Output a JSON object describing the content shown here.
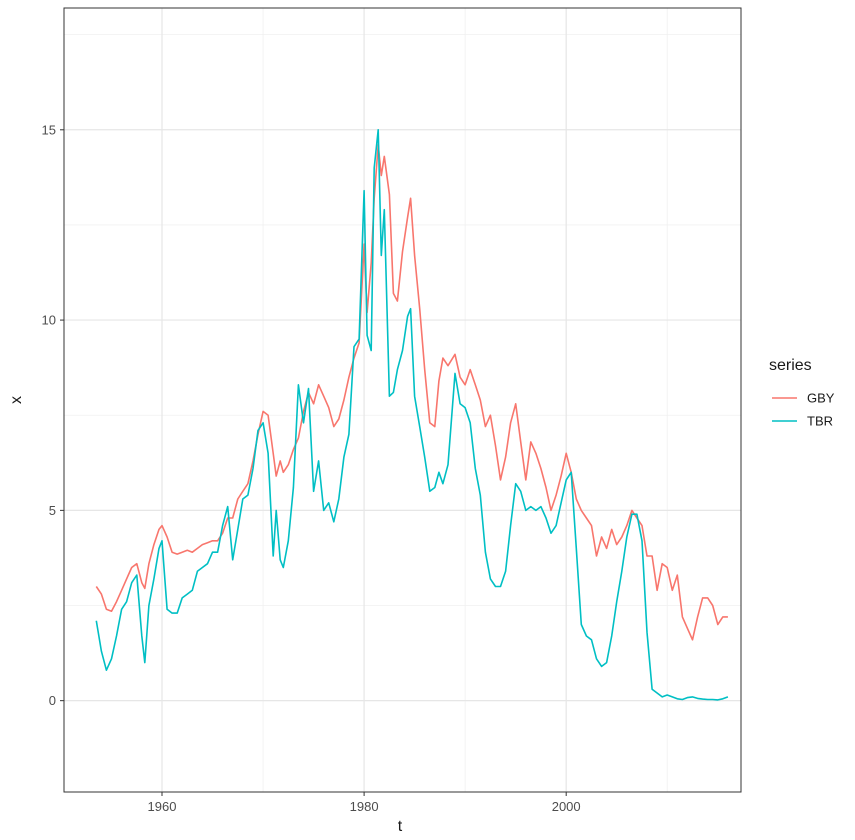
{
  "chart_data": {
    "type": "line",
    "xlabel": "t",
    "ylabel": "x",
    "xlim": [
      1950.3,
      2017.3
    ],
    "ylim": [
      -2.4,
      18.2
    ],
    "x_ticks": [
      1960,
      1980,
      2000
    ],
    "x_tick_labels": [
      "1960",
      "1980",
      "2000"
    ],
    "y_ticks": [
      0,
      5,
      10,
      15
    ],
    "y_tick_labels": [
      "0",
      "5",
      "10",
      "15"
    ],
    "grid": true,
    "legend": {
      "title": "series",
      "position": "right"
    },
    "series": [
      {
        "name": "GBY",
        "color": "#F8766D",
        "points": [
          [
            1953.5,
            3.0
          ],
          [
            1954.0,
            2.8
          ],
          [
            1954.5,
            2.4
          ],
          [
            1955.0,
            2.35
          ],
          [
            1955.5,
            2.6
          ],
          [
            1956.0,
            2.9
          ],
          [
            1956.5,
            3.2
          ],
          [
            1957.0,
            3.5
          ],
          [
            1957.5,
            3.6
          ],
          [
            1958.0,
            3.1
          ],
          [
            1958.3,
            2.95
          ],
          [
            1958.7,
            3.6
          ],
          [
            1959.2,
            4.1
          ],
          [
            1959.7,
            4.5
          ],
          [
            1960.0,
            4.6
          ],
          [
            1960.5,
            4.3
          ],
          [
            1961.0,
            3.9
          ],
          [
            1961.5,
            3.85
          ],
          [
            1962.0,
            3.9
          ],
          [
            1962.5,
            3.95
          ],
          [
            1963.0,
            3.9
          ],
          [
            1963.5,
            4.0
          ],
          [
            1964.0,
            4.1
          ],
          [
            1964.5,
            4.15
          ],
          [
            1965.0,
            4.2
          ],
          [
            1965.5,
            4.2
          ],
          [
            1966.0,
            4.4
          ],
          [
            1966.5,
            4.8
          ],
          [
            1967.0,
            4.8
          ],
          [
            1967.5,
            5.3
          ],
          [
            1968.0,
            5.5
          ],
          [
            1968.5,
            5.7
          ],
          [
            1969.0,
            6.3
          ],
          [
            1969.5,
            7.0
          ],
          [
            1970.0,
            7.6
          ],
          [
            1970.5,
            7.5
          ],
          [
            1971.0,
            6.5
          ],
          [
            1971.3,
            5.9
          ],
          [
            1971.7,
            6.3
          ],
          [
            1972.0,
            6.0
          ],
          [
            1972.5,
            6.2
          ],
          [
            1973.0,
            6.6
          ],
          [
            1973.5,
            6.9
          ],
          [
            1974.0,
            7.6
          ],
          [
            1974.5,
            8.1
          ],
          [
            1975.0,
            7.8
          ],
          [
            1975.5,
            8.3
          ],
          [
            1976.0,
            8.0
          ],
          [
            1976.5,
            7.7
          ],
          [
            1977.0,
            7.2
          ],
          [
            1977.5,
            7.4
          ],
          [
            1978.0,
            7.9
          ],
          [
            1978.5,
            8.5
          ],
          [
            1979.0,
            9.0
          ],
          [
            1979.5,
            9.4
          ],
          [
            1980.0,
            12.0
          ],
          [
            1980.3,
            10.2
          ],
          [
            1980.7,
            11.5
          ],
          [
            1981.0,
            13.2
          ],
          [
            1981.4,
            14.6
          ],
          [
            1981.7,
            13.8
          ],
          [
            1982.0,
            14.3
          ],
          [
            1982.5,
            13.3
          ],
          [
            1982.9,
            10.7
          ],
          [
            1983.3,
            10.5
          ],
          [
            1983.8,
            11.8
          ],
          [
            1984.3,
            12.7
          ],
          [
            1984.6,
            13.2
          ],
          [
            1985.0,
            11.7
          ],
          [
            1985.5,
            10.3
          ],
          [
            1986.0,
            8.7
          ],
          [
            1986.5,
            7.3
          ],
          [
            1987.0,
            7.2
          ],
          [
            1987.4,
            8.4
          ],
          [
            1987.8,
            9.0
          ],
          [
            1988.3,
            8.8
          ],
          [
            1989.0,
            9.1
          ],
          [
            1989.5,
            8.5
          ],
          [
            1990.0,
            8.3
          ],
          [
            1990.5,
            8.7
          ],
          [
            1991.0,
            8.3
          ],
          [
            1991.5,
            7.9
          ],
          [
            1992.0,
            7.2
          ],
          [
            1992.5,
            7.5
          ],
          [
            1993.0,
            6.7
          ],
          [
            1993.5,
            5.8
          ],
          [
            1994.0,
            6.4
          ],
          [
            1994.5,
            7.3
          ],
          [
            1995.0,
            7.8
          ],
          [
            1995.5,
            6.8
          ],
          [
            1996.0,
            5.8
          ],
          [
            1996.5,
            6.8
          ],
          [
            1997.0,
            6.5
          ],
          [
            1997.5,
            6.1
          ],
          [
            1998.0,
            5.6
          ],
          [
            1998.5,
            5.0
          ],
          [
            1999.0,
            5.4
          ],
          [
            1999.5,
            5.9
          ],
          [
            2000.0,
            6.5
          ],
          [
            2000.5,
            6.0
          ],
          [
            2001.0,
            5.3
          ],
          [
            2001.5,
            5.0
          ],
          [
            2002.0,
            4.8
          ],
          [
            2002.5,
            4.6
          ],
          [
            2003.0,
            3.8
          ],
          [
            2003.5,
            4.3
          ],
          [
            2004.0,
            4.0
          ],
          [
            2004.5,
            4.5
          ],
          [
            2005.0,
            4.1
          ],
          [
            2005.5,
            4.3
          ],
          [
            2006.0,
            4.6
          ],
          [
            2006.5,
            5.0
          ],
          [
            2007.0,
            4.8
          ],
          [
            2007.5,
            4.6
          ],
          [
            2008.0,
            3.8
          ],
          [
            2008.5,
            3.8
          ],
          [
            2009.0,
            2.9
          ],
          [
            2009.5,
            3.6
          ],
          [
            2010.0,
            3.5
          ],
          [
            2010.5,
            2.9
          ],
          [
            2011.0,
            3.3
          ],
          [
            2011.5,
            2.2
          ],
          [
            2012.0,
            1.9
          ],
          [
            2012.5,
            1.6
          ],
          [
            2013.0,
            2.2
          ],
          [
            2013.5,
            2.7
          ],
          [
            2014.0,
            2.7
          ],
          [
            2014.5,
            2.5
          ],
          [
            2015.0,
            2.0
          ],
          [
            2015.5,
            2.2
          ],
          [
            2016.0,
            2.2
          ]
        ]
      },
      {
        "name": "TBR",
        "color": "#00BFC4",
        "points": [
          [
            1953.5,
            2.1
          ],
          [
            1954.0,
            1.3
          ],
          [
            1954.5,
            0.8
          ],
          [
            1955.0,
            1.1
          ],
          [
            1955.5,
            1.7
          ],
          [
            1956.0,
            2.4
          ],
          [
            1956.5,
            2.6
          ],
          [
            1957.0,
            3.1
          ],
          [
            1957.5,
            3.3
          ],
          [
            1958.0,
            1.7
          ],
          [
            1958.3,
            1.0
          ],
          [
            1958.7,
            2.5
          ],
          [
            1959.2,
            3.2
          ],
          [
            1959.7,
            4.0
          ],
          [
            1960.0,
            4.2
          ],
          [
            1960.5,
            2.4
          ],
          [
            1961.0,
            2.3
          ],
          [
            1961.5,
            2.3
          ],
          [
            1962.0,
            2.7
          ],
          [
            1962.5,
            2.8
          ],
          [
            1963.0,
            2.9
          ],
          [
            1963.5,
            3.4
          ],
          [
            1964.0,
            3.5
          ],
          [
            1964.5,
            3.6
          ],
          [
            1965.0,
            3.9
          ],
          [
            1965.5,
            3.9
          ],
          [
            1966.0,
            4.6
          ],
          [
            1966.5,
            5.1
          ],
          [
            1967.0,
            3.7
          ],
          [
            1967.5,
            4.5
          ],
          [
            1968.0,
            5.3
          ],
          [
            1968.5,
            5.4
          ],
          [
            1969.0,
            6.1
          ],
          [
            1969.5,
            7.1
          ],
          [
            1970.0,
            7.3
          ],
          [
            1970.5,
            6.5
          ],
          [
            1971.0,
            3.8
          ],
          [
            1971.3,
            5.0
          ],
          [
            1971.7,
            3.7
          ],
          [
            1972.0,
            3.5
          ],
          [
            1972.5,
            4.2
          ],
          [
            1973.0,
            5.6
          ],
          [
            1973.5,
            8.3
          ],
          [
            1974.0,
            7.3
          ],
          [
            1974.5,
            8.2
          ],
          [
            1975.0,
            5.5
          ],
          [
            1975.5,
            6.3
          ],
          [
            1976.0,
            5.0
          ],
          [
            1976.5,
            5.2
          ],
          [
            1977.0,
            4.7
          ],
          [
            1977.5,
            5.3
          ],
          [
            1978.0,
            6.4
          ],
          [
            1978.5,
            7.0
          ],
          [
            1979.0,
            9.3
          ],
          [
            1979.5,
            9.5
          ],
          [
            1980.0,
            13.4
          ],
          [
            1980.3,
            9.6
          ],
          [
            1980.7,
            9.2
          ],
          [
            1981.0,
            14.0
          ],
          [
            1981.4,
            15.0
          ],
          [
            1981.7,
            11.7
          ],
          [
            1982.0,
            12.9
          ],
          [
            1982.5,
            8.0
          ],
          [
            1982.9,
            8.1
          ],
          [
            1983.3,
            8.7
          ],
          [
            1983.8,
            9.2
          ],
          [
            1984.3,
            10.1
          ],
          [
            1984.6,
            10.3
          ],
          [
            1985.0,
            8.0
          ],
          [
            1985.5,
            7.2
          ],
          [
            1986.0,
            6.4
          ],
          [
            1986.5,
            5.5
          ],
          [
            1987.0,
            5.6
          ],
          [
            1987.4,
            6.0
          ],
          [
            1987.8,
            5.7
          ],
          [
            1988.3,
            6.2
          ],
          [
            1989.0,
            8.6
          ],
          [
            1989.5,
            7.8
          ],
          [
            1990.0,
            7.7
          ],
          [
            1990.5,
            7.3
          ],
          [
            1991.0,
            6.1
          ],
          [
            1991.5,
            5.4
          ],
          [
            1992.0,
            3.9
          ],
          [
            1992.5,
            3.2
          ],
          [
            1993.0,
            3.0
          ],
          [
            1993.5,
            3.0
          ],
          [
            1994.0,
            3.4
          ],
          [
            1994.5,
            4.6
          ],
          [
            1995.0,
            5.7
          ],
          [
            1995.5,
            5.5
          ],
          [
            1996.0,
            5.0
          ],
          [
            1996.5,
            5.1
          ],
          [
            1997.0,
            5.0
          ],
          [
            1997.5,
            5.1
          ],
          [
            1998.0,
            4.8
          ],
          [
            1998.5,
            4.4
          ],
          [
            1999.0,
            4.6
          ],
          [
            1999.5,
            5.2
          ],
          [
            2000.0,
            5.8
          ],
          [
            2000.5,
            6.0
          ],
          [
            2001.0,
            4.0
          ],
          [
            2001.5,
            2.0
          ],
          [
            2002.0,
            1.7
          ],
          [
            2002.5,
            1.6
          ],
          [
            2003.0,
            1.1
          ],
          [
            2003.5,
            0.9
          ],
          [
            2004.0,
            1.0
          ],
          [
            2004.5,
            1.7
          ],
          [
            2005.0,
            2.6
          ],
          [
            2005.5,
            3.4
          ],
          [
            2006.0,
            4.3
          ],
          [
            2006.5,
            4.9
          ],
          [
            2007.0,
            4.9
          ],
          [
            2007.5,
            4.2
          ],
          [
            2008.0,
            1.8
          ],
          [
            2008.5,
            0.3
          ],
          [
            2009.0,
            0.2
          ],
          [
            2009.5,
            0.1
          ],
          [
            2010.0,
            0.15
          ],
          [
            2010.5,
            0.1
          ],
          [
            2011.0,
            0.05
          ],
          [
            2011.5,
            0.03
          ],
          [
            2012.0,
            0.08
          ],
          [
            2012.5,
            0.1
          ],
          [
            2013.0,
            0.06
          ],
          [
            2013.5,
            0.04
          ],
          [
            2014.0,
            0.03
          ],
          [
            2014.5,
            0.03
          ],
          [
            2015.0,
            0.02
          ],
          [
            2015.5,
            0.05
          ],
          [
            2016.0,
            0.1
          ]
        ]
      }
    ]
  }
}
